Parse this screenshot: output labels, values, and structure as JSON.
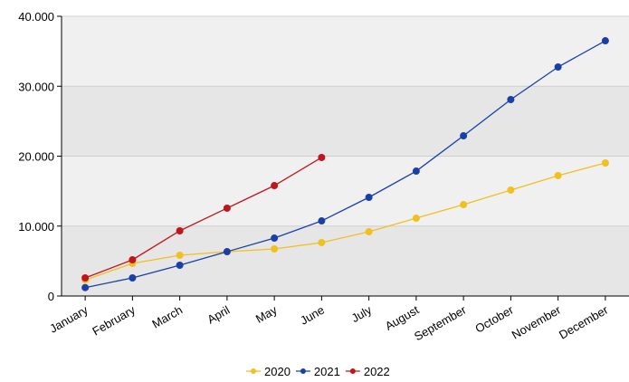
{
  "chart_data": {
    "type": "line",
    "categories": [
      "January",
      "February",
      "March",
      "April",
      "May",
      "June",
      "July",
      "August",
      "September",
      "October",
      "November",
      "December"
    ],
    "series": [
      {
        "name": "2020",
        "color": "#f0c020",
        "values": [
          2300,
          4660,
          5830,
          6340,
          6730,
          7640,
          9190,
          11130,
          13070,
          15150,
          17220,
          19030
        ]
      },
      {
        "name": "2021",
        "color": "#1a3fa8",
        "values": [
          1200,
          2590,
          4400,
          6340,
          8280,
          10740,
          14110,
          17860,
          22910,
          28090,
          32750,
          36500
        ]
      },
      {
        "name": "2022",
        "color": "#c0161b",
        "values": [
          2590,
          5180,
          9320,
          12560,
          15790,
          19810,
          null,
          null,
          null,
          null,
          null,
          null
        ]
      }
    ],
    "ylim": [
      0,
      40000
    ],
    "yticks": [
      0,
      {
        "value": 10000,
        "label": "10.000"
      },
      {
        "value": 20000,
        "label": "20.000"
      },
      {
        "value": 30000,
        "label": "30.000"
      },
      {
        "value": 40000,
        "label": "40.000"
      }
    ],
    "grid": true,
    "legend": "bottom"
  }
}
